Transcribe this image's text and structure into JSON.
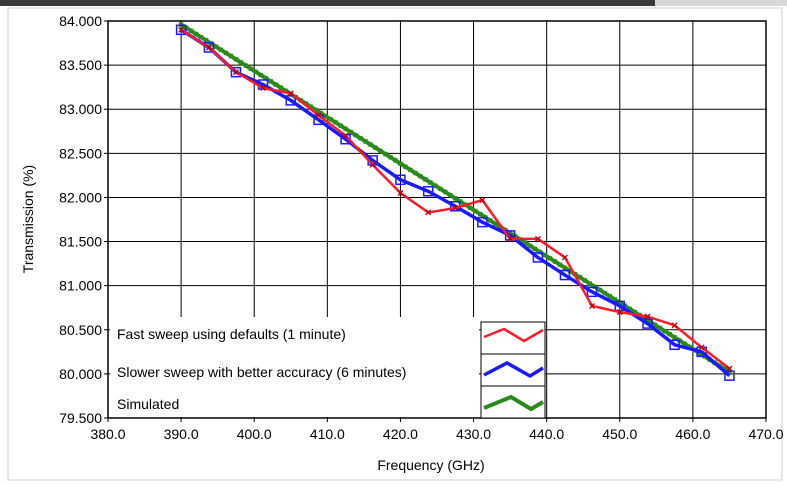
{
  "colors": {
    "background": "#ffffff",
    "plot_area": "#ffffff",
    "grid": "#000000",
    "red": "#ff1a2a",
    "blue": "#1a1aff",
    "green": "#2a8a1a"
  },
  "chart_data": {
    "type": "line",
    "title": "",
    "xlabel": "Frequency (GHz)",
    "ylabel": "Transmission (%)",
    "xlim": [
      380.0,
      470.0
    ],
    "ylim": [
      79.5,
      84.0
    ],
    "x_ticks": [
      380.0,
      390.0,
      400.0,
      410.0,
      420.0,
      430.0,
      440.0,
      450.0,
      460.0,
      470.0
    ],
    "x_tick_labels": [
      "380.0",
      "390.0",
      "400.0",
      "410.0",
      "420.0",
      "430.0",
      "440.0",
      "450.0",
      "460.0",
      "470.0"
    ],
    "y_ticks": [
      79.5,
      80.0,
      80.5,
      81.0,
      81.5,
      82.0,
      82.5,
      83.0,
      83.5,
      84.0
    ],
    "y_tick_labels": [
      "79.500",
      "80.000",
      "80.500",
      "81.000",
      "81.500",
      "82.000",
      "82.500",
      "83.000",
      "83.500",
      "84.000"
    ],
    "grid": true,
    "legend_position": "bottom-left",
    "series": [
      {
        "name": "Fast sweep using defaults (1 minute)",
        "color": "#ff1a2a",
        "marker": "x",
        "x": [
          390.0,
          393.8,
          397.5,
          401.2,
          405.0,
          408.8,
          412.5,
          416.2,
          420.0,
          423.8,
          427.5,
          431.2,
          435.0,
          438.8,
          442.5,
          446.2,
          450.0,
          453.8,
          457.5,
          461.2,
          465.0
        ],
        "y": [
          83.9,
          83.7,
          83.42,
          83.24,
          83.18,
          82.93,
          82.7,
          82.37,
          82.05,
          81.83,
          81.88,
          81.97,
          81.53,
          81.53,
          81.32,
          80.77,
          80.7,
          80.65,
          80.55,
          80.3,
          80.06
        ]
      },
      {
        "name": "Slower sweep with better accuracy (6 minutes)",
        "color": "#1a1aff",
        "marker": "square",
        "x": [
          390.0,
          393.8,
          397.5,
          401.2,
          405.0,
          408.8,
          412.5,
          416.2,
          420.0,
          423.8,
          427.5,
          431.2,
          435.0,
          438.8,
          442.5,
          446.2,
          450.0,
          453.8,
          457.5,
          461.2,
          465.0
        ],
        "y": [
          83.9,
          83.7,
          83.42,
          83.28,
          83.1,
          82.88,
          82.66,
          82.42,
          82.2,
          82.07,
          81.9,
          81.72,
          81.57,
          81.32,
          81.12,
          80.93,
          80.77,
          80.57,
          80.33,
          80.25,
          79.98
        ]
      },
      {
        "name": "Simulated",
        "color": "#2a8a1a",
        "marker": "dot",
        "x": [
          390.0,
          465.0
        ],
        "y": [
          83.96,
          80.02
        ]
      }
    ]
  }
}
